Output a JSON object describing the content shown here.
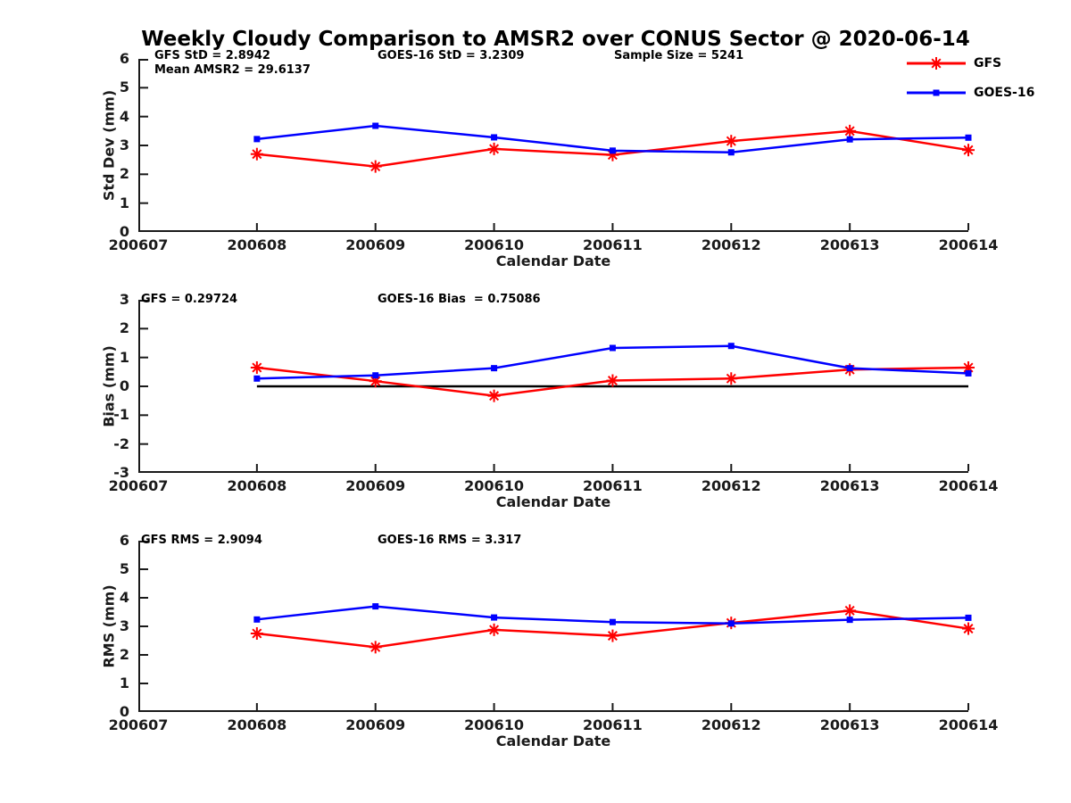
{
  "title": "Weekly Cloudy Comparison to AMSR2 over CONUS Sector @ 2020-06-14",
  "axis_color": "#1a1a1a",
  "legend": {
    "entries": [
      {
        "label": "GFS",
        "color": "#ff0000",
        "marker": "asterisk"
      },
      {
        "label": "GOES-16",
        "color": "#0000ff",
        "marker": "square"
      }
    ]
  },
  "chart_data": [
    {
      "type": "line",
      "ylabel": "Std Dev (mm)",
      "xlabel": "Calendar Date",
      "ylim": [
        0,
        6
      ],
      "ytick_step": 1,
      "grid": false,
      "categories": [
        "200607",
        "200608",
        "200609",
        "200610",
        "200611",
        "200612",
        "200613",
        "200614"
      ],
      "series": [
        {
          "name": "GFS",
          "color": "#ff0000",
          "marker": "asterisk",
          "x": [
            "200608",
            "200609",
            "200610",
            "200611",
            "200612",
            "200613",
            "200614"
          ],
          "values": [
            2.7,
            2.27,
            2.88,
            2.67,
            3.15,
            3.5,
            2.84
          ]
        },
        {
          "name": "GOES-16",
          "color": "#0000ff",
          "marker": "square",
          "x": [
            "200608",
            "200609",
            "200610",
            "200611",
            "200612",
            "200613",
            "200614"
          ],
          "values": [
            3.22,
            3.68,
            3.28,
            2.82,
            2.76,
            3.21,
            3.27
          ]
        }
      ],
      "annotations": [
        "GFS StD = 2.8942",
        "Mean AMSR2 = 29.6137",
        "GOES-16 StD = 3.2309",
        "Sample Size = 5241"
      ]
    },
    {
      "type": "line",
      "ylabel": "Bias (mm)",
      "xlabel": "Calendar Date",
      "ylim": [
        -3,
        3
      ],
      "ytick_step": 1,
      "grid": false,
      "zero_line": true,
      "zero_line_color": "#000000",
      "categories": [
        "200607",
        "200608",
        "200609",
        "200610",
        "200611",
        "200612",
        "200613",
        "200614"
      ],
      "series": [
        {
          "name": "GFS",
          "color": "#ff0000",
          "marker": "asterisk",
          "x": [
            "200608",
            "200609",
            "200610",
            "200611",
            "200612",
            "200613",
            "200614"
          ],
          "values": [
            0.65,
            0.18,
            -0.33,
            0.2,
            0.27,
            0.58,
            0.65
          ]
        },
        {
          "name": "GOES-16",
          "color": "#0000ff",
          "marker": "square",
          "x": [
            "200608",
            "200609",
            "200610",
            "200611",
            "200612",
            "200613",
            "200614"
          ],
          "values": [
            0.27,
            0.38,
            0.63,
            1.33,
            1.4,
            0.63,
            0.45
          ]
        }
      ],
      "annotations": [
        "GFS = 0.29724",
        "GOES-16 Bias  = 0.75086"
      ]
    },
    {
      "type": "line",
      "ylabel": "RMS (mm)",
      "xlabel": "Calendar Date",
      "ylim": [
        0,
        6
      ],
      "ytick_step": 1,
      "grid": false,
      "categories": [
        "200607",
        "200608",
        "200609",
        "200610",
        "200611",
        "200612",
        "200613",
        "200614"
      ],
      "series": [
        {
          "name": "GFS",
          "color": "#ff0000",
          "marker": "asterisk",
          "x": [
            "200608",
            "200609",
            "200610",
            "200611",
            "200612",
            "200613",
            "200614"
          ],
          "values": [
            2.75,
            2.27,
            2.88,
            2.67,
            3.12,
            3.55,
            2.92
          ]
        },
        {
          "name": "GOES-16",
          "color": "#0000ff",
          "marker": "square",
          "x": [
            "200608",
            "200609",
            "200610",
            "200611",
            "200612",
            "200613",
            "200614"
          ],
          "values": [
            3.24,
            3.7,
            3.31,
            3.15,
            3.1,
            3.23,
            3.3
          ]
        }
      ],
      "annotations": [
        "GFS RMS = 2.9094",
        "GOES-16 RMS = 3.317"
      ]
    }
  ]
}
